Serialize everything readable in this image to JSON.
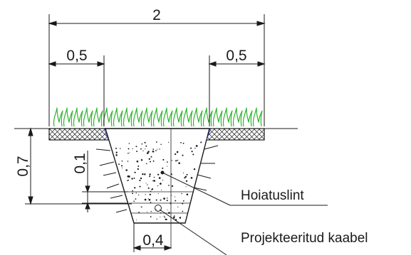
{
  "dimensions": {
    "top_width": "2",
    "left_offset": "0,5",
    "right_offset": "0,5",
    "depth": "0,7",
    "tape_depth": "0,1",
    "bottom_width": "0,4"
  },
  "labels": {
    "warning_tape": "Hoiatuslint",
    "planned_cable": "Projekteeritud kaabel"
  },
  "colors": {
    "grass": "#2fb52f",
    "line": "#1a1a1a",
    "slope": "#3344cc"
  }
}
